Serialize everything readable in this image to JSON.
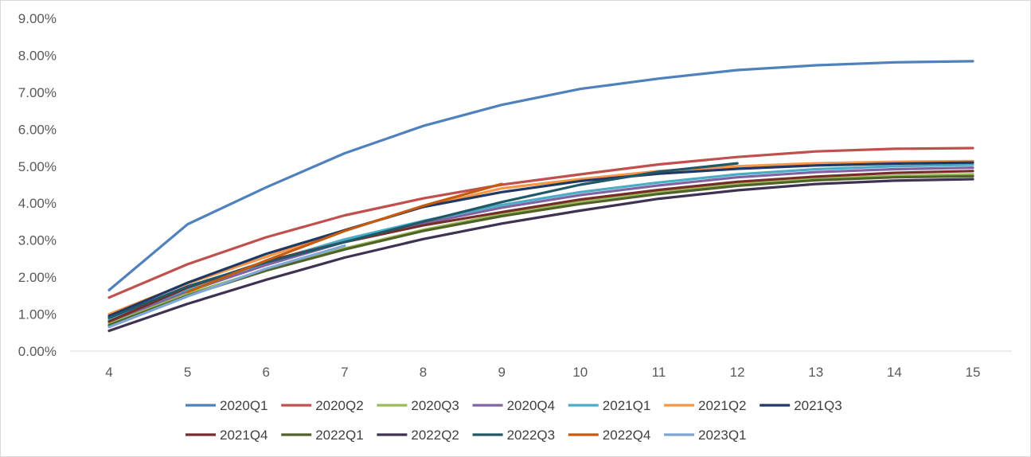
{
  "chart_data": {
    "type": "line",
    "title": "",
    "xlabel": "",
    "ylabel": "",
    "x": [
      4,
      5,
      6,
      7,
      8,
      9,
      10,
      11,
      12,
      13,
      14,
      15
    ],
    "x_tick_labels": [
      "4",
      "5",
      "6",
      "7",
      "8",
      "9",
      "10",
      "11",
      "12",
      "13",
      "14",
      "15"
    ],
    "ylim": [
      0,
      0.09
    ],
    "y_ticks": [
      0,
      0.01,
      0.02,
      0.03,
      0.04,
      0.05,
      0.06,
      0.07,
      0.08,
      0.09
    ],
    "y_tick_labels": [
      "0.00%",
      "1.00%",
      "2.00%",
      "3.00%",
      "4.00%",
      "5.00%",
      "6.00%",
      "7.00%",
      "8.00%",
      "9.00%"
    ],
    "grid": false,
    "legend_position": "bottom",
    "series": [
      {
        "name": "2020Q1",
        "color": "#4f81bd",
        "values": [
          0.0165,
          0.0343,
          0.0443,
          0.0535,
          0.0609,
          0.0666,
          0.0709,
          0.0737,
          0.076,
          0.0773,
          0.0781,
          0.0784
        ]
      },
      {
        "name": "2020Q2",
        "color": "#c0504d",
        "values": [
          0.0145,
          0.0235,
          0.0308,
          0.0367,
          0.0413,
          0.045,
          0.0478,
          0.0505,
          0.0525,
          0.054,
          0.0547,
          0.0549
        ]
      },
      {
        "name": "2020Q3",
        "color": "#9bbb59",
        "values": [
          0.0075,
          0.0155,
          0.022,
          0.0278,
          0.0328,
          0.037,
          0.0405,
          0.0432,
          0.0452,
          0.0466,
          0.0474,
          0.0478
        ]
      },
      {
        "name": "2020Q4",
        "color": "#8064a2",
        "values": [
          0.008,
          0.0162,
          0.0233,
          0.0295,
          0.0345,
          0.0388,
          0.0422,
          0.0448,
          0.047,
          0.0484,
          0.0492,
          0.0496
        ]
      },
      {
        "name": "2021Q1",
        "color": "#4bacc6",
        "values": [
          0.0085,
          0.0168,
          0.024,
          0.0302,
          0.0352,
          0.0395,
          0.043,
          0.0456,
          0.0478,
          0.0492,
          0.05,
          0.0504
        ]
      },
      {
        "name": "2021Q2",
        "color": "#f79646",
        "values": [
          0.01,
          0.0183,
          0.0255,
          0.0327,
          0.039,
          0.044,
          0.0465,
          0.0487,
          0.05,
          0.0508,
          0.0512,
          0.0514
        ]
      },
      {
        "name": "2021Q3",
        "color": "#1f3864",
        "values": [
          0.0095,
          0.0185,
          0.0263,
          0.0327,
          0.039,
          0.043,
          0.046,
          0.048,
          0.0493,
          0.0502,
          0.0507,
          0.051
        ]
      },
      {
        "name": "2021Q4",
        "color": "#772c2a",
        "values": [
          0.008,
          0.0172,
          0.0243,
          0.0295,
          0.034,
          0.0376,
          0.041,
          0.0436,
          0.0458,
          0.0472,
          0.0482,
          0.0487
        ]
      },
      {
        "name": "2022Q1",
        "color": "#4f6228",
        "values": [
          0.007,
          0.015,
          0.0218,
          0.0275,
          0.0325,
          0.0365,
          0.0398,
          0.0425,
          0.0447,
          0.0462,
          0.047,
          0.0473
        ]
      },
      {
        "name": "2022Q2",
        "color": "#3f3151",
        "values": [
          0.0055,
          0.0128,
          0.0193,
          0.0253,
          0.0303,
          0.0345,
          0.038,
          0.0412,
          0.0435,
          0.0452,
          0.0461,
          0.0465
        ]
      },
      {
        "name": "2022Q3",
        "color": "#215868",
        "values": [
          0.009,
          0.0175,
          0.024,
          0.0295,
          0.035,
          0.0403,
          0.045,
          0.0485,
          0.0508,
          null,
          null,
          null
        ]
      },
      {
        "name": "2022Q4",
        "color": "#c55a11",
        "values": [
          null,
          0.016,
          0.0245,
          0.0325,
          0.0393,
          0.0452,
          null,
          null,
          null,
          null,
          null,
          null
        ]
      },
      {
        "name": "2023Q1",
        "color": "#7ea6d6",
        "values": [
          0.0065,
          0.0148,
          0.0223,
          0.0285,
          null,
          null,
          null,
          null,
          null,
          null,
          null,
          null
        ]
      }
    ]
  }
}
